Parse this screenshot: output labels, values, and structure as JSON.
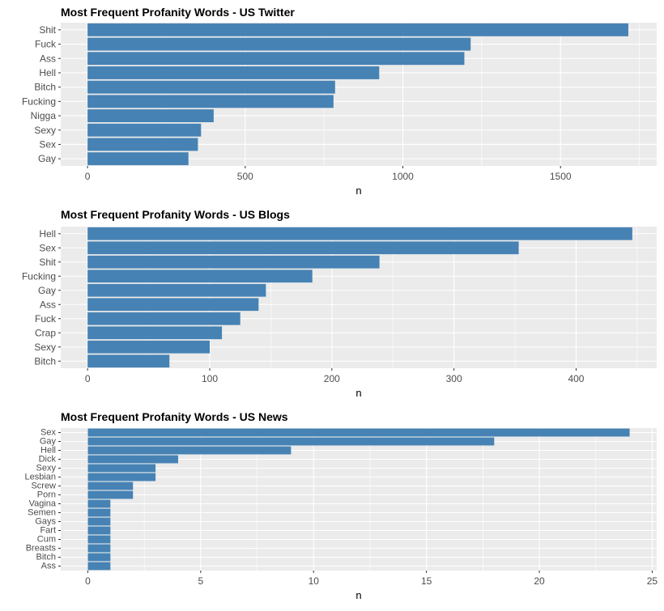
{
  "chart_data": [
    {
      "type": "bar",
      "orientation": "horizontal",
      "title": "Most Frequent Profanity Words - US Twitter",
      "xlabel": "n",
      "ylabel": "",
      "categories": [
        "Shit",
        "Fuck",
        "Ass",
        "Hell",
        "Bitch",
        "Fucking",
        "Nigga",
        "Sexy",
        "Sex",
        "Gay"
      ],
      "values": [
        1715,
        1215,
        1195,
        925,
        785,
        780,
        400,
        360,
        350,
        320
      ],
      "xlim": [
        -85,
        1805
      ],
      "xticks": [
        0,
        500,
        1000,
        1500
      ],
      "grid": true,
      "bar_color": "#4682B4",
      "panel_color": "#EBEBEB"
    },
    {
      "type": "bar",
      "orientation": "horizontal",
      "title": "Most Frequent Profanity Words - US Blogs",
      "xlabel": "n",
      "ylabel": "",
      "categories": [
        "Hell",
        "Sex",
        "Shit",
        "Fucking",
        "Gay",
        "Ass",
        "Fuck",
        "Crap",
        "Sexy",
        "Bitch"
      ],
      "values": [
        446,
        353,
        239,
        184,
        146,
        140,
        125,
        110,
        100,
        67
      ],
      "xlim": [
        -22,
        466
      ],
      "xticks": [
        0,
        100,
        200,
        300,
        400
      ],
      "grid": true,
      "bar_color": "#4682B4",
      "panel_color": "#EBEBEB"
    },
    {
      "type": "bar",
      "orientation": "horizontal",
      "title": "Most Frequent Profanity Words - US News",
      "xlabel": "n",
      "ylabel": "",
      "categories": [
        "Sex",
        "Gay",
        "Hell",
        "Dick",
        "Sexy",
        "Lesbian",
        "Screw",
        "Porn",
        "Vagina",
        "Semen",
        "Gays",
        "Fart",
        "Cum",
        "Breasts",
        "Bitch",
        "Ass"
      ],
      "values": [
        24,
        18,
        9,
        4,
        3,
        3,
        2,
        2,
        1,
        1,
        1,
        1,
        1,
        1,
        1,
        1
      ],
      "xlim": [
        -1.2,
        25.2
      ],
      "xticks": [
        0,
        5,
        10,
        15,
        20,
        25
      ],
      "grid": true,
      "bar_color": "#4682B4",
      "panel_color": "#EBEBEB"
    }
  ]
}
